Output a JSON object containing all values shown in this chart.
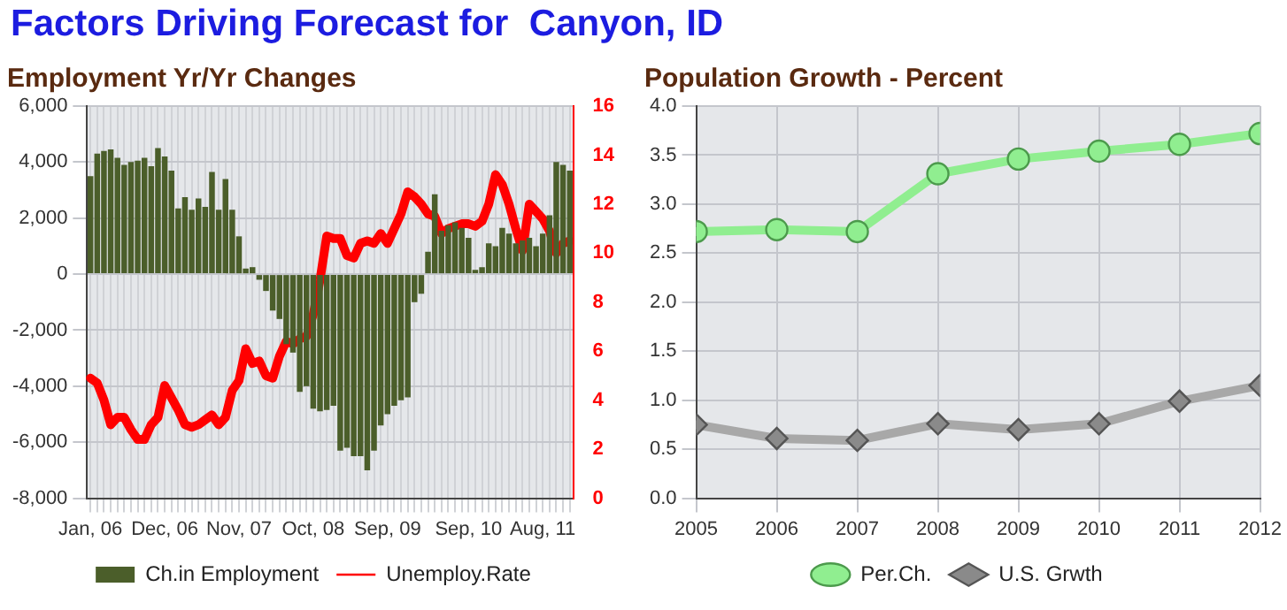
{
  "chart_data": [
    {
      "type": "bar",
      "title": "Employment Yr/Yr Changes",
      "annotations": [
        "Factors Driving Forecast for  Canyon, ID"
      ],
      "categories": [
        "Jan, 06",
        null,
        null,
        null,
        null,
        null,
        null,
        null,
        null,
        null,
        null,
        "Dec, 06",
        null,
        null,
        null,
        null,
        null,
        null,
        null,
        null,
        null,
        null,
        "Nov, 07",
        null,
        null,
        null,
        null,
        null,
        null,
        null,
        null,
        null,
        null,
        "Oct, 08",
        null,
        null,
        null,
        null,
        null,
        null,
        null,
        null,
        null,
        null,
        "Sep, 09",
        null,
        null,
        null,
        null,
        null,
        null,
        null,
        null,
        null,
        null,
        null,
        "Sep, 10",
        null,
        null,
        null,
        null,
        null,
        null,
        null,
        null,
        null,
        null,
        "Aug, 11",
        null,
        null,
        null,
        null
      ],
      "series": [
        {
          "name": "Ch.in Employment",
          "color": "#4b5e2a",
          "values": [
            3500,
            4300,
            4400,
            4450,
            4150,
            3900,
            4000,
            4050,
            4150,
            3850,
            4500,
            4200,
            3700,
            2350,
            2750,
            2300,
            2700,
            2400,
            3650,
            2300,
            3400,
            2300,
            1350,
            200,
            250,
            -200,
            -600,
            -1300,
            -1600,
            -2500,
            -2800,
            -4200,
            -4000,
            -4800,
            -4900,
            -4850,
            -4700,
            -6300,
            -6200,
            -6500,
            -6500,
            -7000,
            -6300,
            -5400,
            -5000,
            -4700,
            -4500,
            -4400,
            -1000,
            -700,
            800,
            2850,
            1550,
            1750,
            1850,
            1650,
            1300,
            150,
            250,
            1100,
            1000,
            1650,
            1450,
            1100,
            1200,
            1300,
            1000,
            1450,
            2100,
            4000,
            3900,
            3700
          ]
        },
        {
          "name": "Unemploy.Rate",
          "type": "line",
          "axis": "y2",
          "color": "#ff0000",
          "marker": "none",
          "values": [
            4.9,
            4.7,
            4.0,
            3.0,
            3.3,
            3.3,
            2.8,
            2.4,
            2.4,
            3.0,
            3.3,
            4.6,
            4.1,
            3.6,
            3.0,
            2.9,
            3.0,
            3.2,
            3.4,
            3.0,
            3.3,
            4.4,
            4.8,
            6.1,
            5.5,
            5.6,
            5.0,
            4.9,
            5.8,
            6.4,
            6.3,
            6.5,
            6.6,
            7.5,
            8.9,
            10.7,
            10.6,
            10.6,
            9.9,
            9.8,
            10.4,
            10.5,
            10.4,
            10.8,
            10.4,
            11.0,
            11.6,
            12.5,
            12.3,
            12.0,
            11.6,
            11.5,
            10.8,
            11.0,
            11.1,
            11.2,
            11.2,
            11.1,
            11.3,
            12.0,
            13.2,
            12.8,
            12.0,
            11.0,
            10.1,
            12.0,
            11.7,
            11.4,
            10.9,
            10.0,
            10.4,
            10.5
          ]
        }
      ],
      "ylim": [
        -8000,
        6000
      ],
      "yticks": [
        {
          "value": -8000,
          "label": "-8,000"
        },
        {
          "value": -6000,
          "label": "-6,000"
        },
        {
          "value": -4000,
          "label": "-4,000"
        },
        {
          "value": -2000,
          "label": "-2,000"
        },
        0,
        {
          "value": 2000,
          "label": "2,000"
        },
        {
          "value": 4000,
          "label": "4,000"
        },
        {
          "value": 6000,
          "label": "6,000"
        }
      ],
      "y2lim": [
        0,
        16
      ],
      "y2ticks": [
        0,
        2,
        4,
        6,
        8,
        10,
        12,
        14,
        16
      ],
      "grid": true,
      "legend": "bottom"
    },
    {
      "type": "line",
      "title": "Population Growth - Percent",
      "x": [
        2005,
        2006,
        2007,
        2008,
        2009,
        2010,
        2011,
        2012
      ],
      "series": [
        {
          "name": "Per.Ch.",
          "color": "#90ee90",
          "marker": "circle",
          "values": [
            2.72,
            2.74,
            2.72,
            3.31,
            3.46,
            3.54,
            3.61,
            3.72
          ]
        },
        {
          "name": "U.S. Grwth",
          "color": "#a8a8a8",
          "marker": "diamond",
          "values": [
            0.75,
            0.61,
            0.59,
            0.76,
            0.7,
            0.76,
            0.99,
            1.15
          ]
        }
      ],
      "xlim": [
        2005,
        2012
      ],
      "xticks": [
        2005,
        2006,
        2007,
        2008,
        2009,
        2010,
        2011,
        2012
      ],
      "ylim": [
        0,
        4
      ],
      "yticks": [
        {
          "value": 0,
          "label": "0.0"
        },
        0.5,
        {
          "value": 1,
          "label": "1.0"
        },
        1.5,
        {
          "value": 2,
          "label": "2.0"
        },
        2.5,
        {
          "value": 3,
          "label": "3.0"
        },
        3.5,
        {
          "value": 4,
          "label": "4.0"
        }
      ],
      "grid": true,
      "legend": "bottom"
    }
  ]
}
